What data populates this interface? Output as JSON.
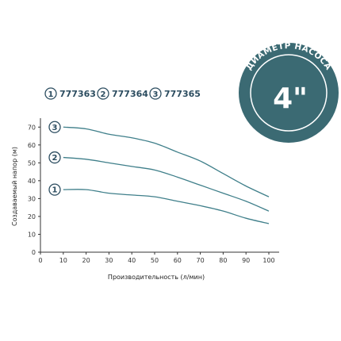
{
  "badge": {
    "arc_text": "ДИАМЕТР НАСОСА",
    "size_text": "4\""
  },
  "legend": [
    {
      "num": "1",
      "code": "777363"
    },
    {
      "num": "2",
      "code": "777364"
    },
    {
      "num": "3",
      "code": "777365"
    }
  ],
  "colors": {
    "curve": "#3f7f8a",
    "badge_fill": "#3b6a73",
    "badge_ring": "#ffffff",
    "axis": "#333333",
    "text_dark": "#2c4d60"
  },
  "chart_data": {
    "type": "line",
    "title": "",
    "xlabel": "Производительность (л/мин)",
    "ylabel": "Создаваемый напор (м)",
    "xlim": [
      0,
      100
    ],
    "ylim": [
      0,
      75
    ],
    "xticks": [
      0,
      10,
      20,
      30,
      40,
      50,
      60,
      70,
      80,
      90,
      100
    ],
    "yticks": [
      0,
      10,
      20,
      30,
      40,
      50,
      60,
      70
    ],
    "grid": false,
    "series": [
      {
        "name": "1",
        "x": [
          10,
          20,
          30,
          40,
          50,
          60,
          70,
          80,
          90,
          100
        ],
        "values": [
          35,
          35,
          33,
          32,
          31,
          28.5,
          26,
          23,
          19,
          16
        ]
      },
      {
        "name": "2",
        "x": [
          10,
          20,
          30,
          40,
          50,
          60,
          70,
          80,
          90,
          100
        ],
        "values": [
          53,
          52,
          50,
          48,
          46,
          42,
          37.5,
          33,
          28.5,
          23
        ]
      },
      {
        "name": "3",
        "x": [
          10,
          20,
          30,
          40,
          50,
          60,
          70,
          80,
          90,
          100
        ],
        "values": [
          70,
          69,
          66,
          64,
          61,
          56,
          51,
          44,
          37,
          31
        ]
      }
    ]
  }
}
